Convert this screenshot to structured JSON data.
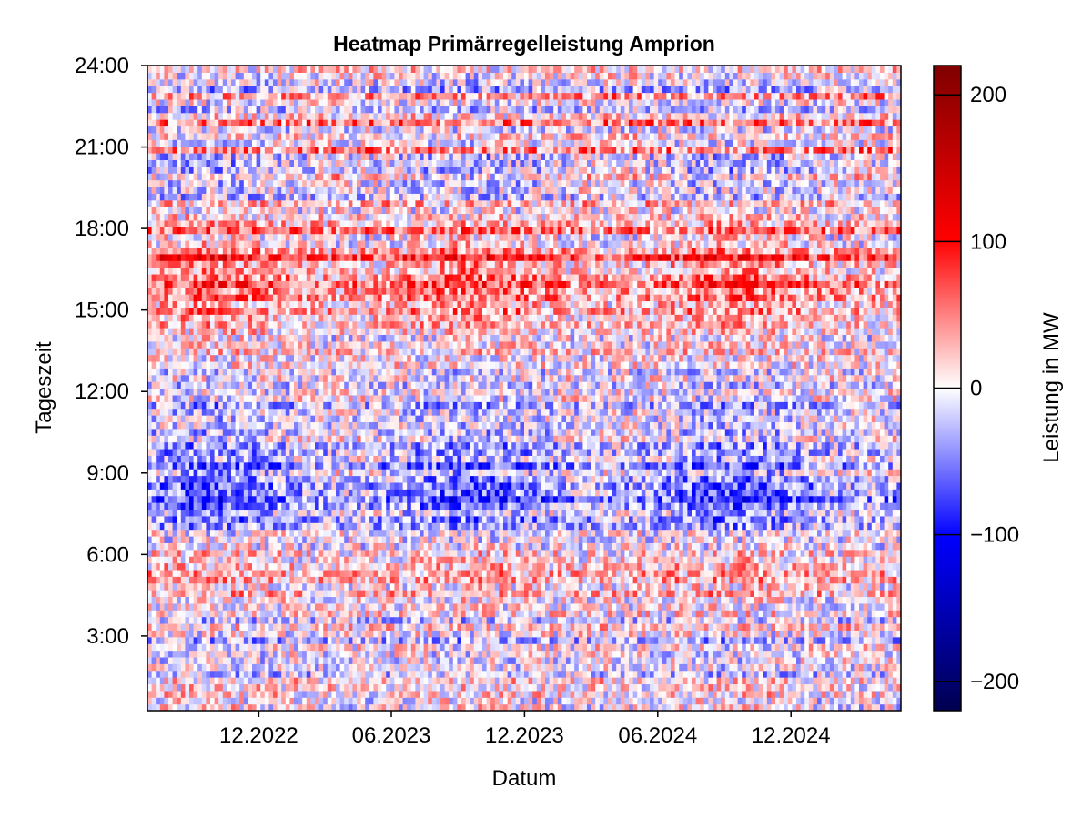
{
  "chart_data": {
    "type": "heatmap",
    "title": "Heatmap Primärregelleistung Amprion",
    "xlabel": "Datum",
    "ylabel": "Tageszeit",
    "colorbar_label": "Leistung in MW",
    "x_range": [
      "2022-07",
      "2025-05"
    ],
    "x_ticks": [
      {
        "label": "12.2022",
        "date": "2022-12-01"
      },
      {
        "label": "06.2023",
        "date": "2023-06-01"
      },
      {
        "label": "12.2023",
        "date": "2023-12-01"
      },
      {
        "label": "06.2024",
        "date": "2024-06-01"
      },
      {
        "label": "12.2024",
        "date": "2024-12-01"
      }
    ],
    "y_range_hours": [
      0.25,
      24.0
    ],
    "y_ticks": [
      {
        "label": "3:00",
        "hour": 3
      },
      {
        "label": "6:00",
        "hour": 6
      },
      {
        "label": "9:00",
        "hour": 9
      },
      {
        "label": "12:00",
        "hour": 12
      },
      {
        "label": "15:00",
        "hour": 15
      },
      {
        "label": "18:00",
        "hour": 18
      },
      {
        "label": "21:00",
        "hour": 21
      },
      {
        "label": "24:00",
        "hour": 24
      }
    ],
    "color_range": [
      -220,
      220
    ],
    "colorbar_ticks": [
      {
        "label": "200",
        "value": 200
      },
      {
        "label": "100",
        "value": 100
      },
      {
        "label": "0",
        "value": 0
      },
      {
        "label": "−100",
        "value": -100
      },
      {
        "label": "−200",
        "value": -200
      }
    ],
    "colormap": [
      "#000050",
      "#0000ff",
      "#ffffff",
      "#ff0000",
      "#800000"
    ],
    "daily_profile_mw": [
      {
        "hour": 0.5,
        "value": 20
      },
      {
        "hour": 1.5,
        "value": -5
      },
      {
        "hour": 3,
        "value": -10
      },
      {
        "hour": 4.5,
        "value": 10
      },
      {
        "hour": 6,
        "value": 15
      },
      {
        "hour": 7,
        "value": -15
      },
      {
        "hour": 8,
        "value": -45
      },
      {
        "hour": 9,
        "value": -35
      },
      {
        "hour": 10.5,
        "value": -20
      },
      {
        "hour": 12,
        "value": -15
      },
      {
        "hour": 13.5,
        "value": 5
      },
      {
        "hour": 15,
        "value": 25
      },
      {
        "hour": 16,
        "value": 35
      },
      {
        "hour": 17,
        "value": 30
      },
      {
        "hour": 18,
        "value": 15
      },
      {
        "hour": 19,
        "value": -10
      },
      {
        "hour": 20,
        "value": -35
      },
      {
        "hour": 21,
        "value": -10
      },
      {
        "hour": 22,
        "value": 0
      },
      {
        "hour": 23.5,
        "value": -15
      }
    ]
  }
}
